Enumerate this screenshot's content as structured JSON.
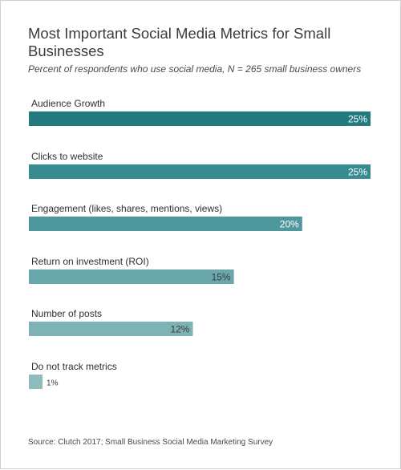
{
  "header": {
    "title": "Most Important Social Media Metrics for Small Businesses",
    "subtitle": "Percent of respondents who use social media, N = 265 small business owners"
  },
  "footer": {
    "source": "Source: Clutch 2017; Small Business Social Media Marketing Survey"
  },
  "chart_data": {
    "type": "bar",
    "orientation": "horizontal",
    "title": "Most Important Social Media Metrics for Small Businesses",
    "subtitle": "Percent of respondents who use social media, N = 265 small business owners",
    "categories": [
      "Audience Growth",
      "Clicks to website",
      "Engagement (likes, shares, mentions, views)",
      "Return on investment (ROI)",
      "Number of posts",
      "Do not track metrics"
    ],
    "values": [
      25,
      25,
      20,
      15,
      12,
      1
    ],
    "value_labels": [
      "25%",
      "25%",
      "20%",
      "15%",
      "12%",
      "1%"
    ],
    "unit": "%",
    "xlim": [
      0,
      25
    ],
    "grid": false,
    "legend": "none",
    "colors": [
      "#237a80",
      "#378a90",
      "#4e979c",
      "#6aa7ab",
      "#7eb3b6",
      "#8dbcbf"
    ],
    "label_colors": [
      "#ffffff",
      "#ffffff",
      "#ffffff",
      "#3a3a3a",
      "#3a3a3a",
      "#3a3a3a"
    ]
  }
}
